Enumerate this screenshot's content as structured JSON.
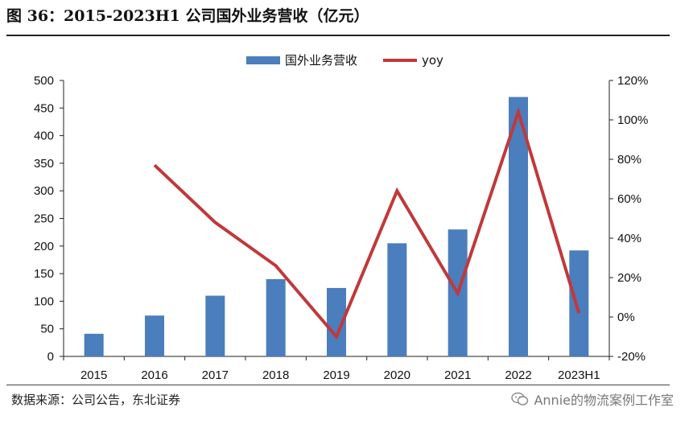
{
  "title": "图 36：2015-2023H1 公司国外业务营收（亿元）",
  "source": "数据来源：公司公告，东北证券",
  "watermark": "Annie的物流案例工作室",
  "colors": {
    "bar": "#4a7ebd",
    "line": "#c0393b"
  },
  "chart_data": {
    "type": "bar",
    "categories": [
      "2015",
      "2016",
      "2017",
      "2018",
      "2019",
      "2020",
      "2021",
      "2022",
      "2023H1"
    ],
    "series": [
      {
        "name": "国外业务营收",
        "type": "bar",
        "axis": "left",
        "values": [
          41,
          74,
          110,
          140,
          124,
          205,
          230,
          470,
          192
        ]
      },
      {
        "name": "yoy",
        "type": "line",
        "axis": "right",
        "values": [
          null,
          0.77,
          0.48,
          0.26,
          -0.1,
          0.64,
          0.12,
          1.04,
          0.02
        ]
      }
    ],
    "ylim": [
      0,
      500
    ],
    "yticks": [
      "0",
      "50",
      "100",
      "150",
      "200",
      "250",
      "300",
      "350",
      "400",
      "450",
      "500"
    ],
    "y2lim": [
      -0.2,
      1.2
    ],
    "y2ticks": [
      "-20%",
      "0%",
      "20%",
      "40%",
      "60%",
      "80%",
      "100%",
      "120%"
    ],
    "legend": "top-center",
    "grid": false
  }
}
